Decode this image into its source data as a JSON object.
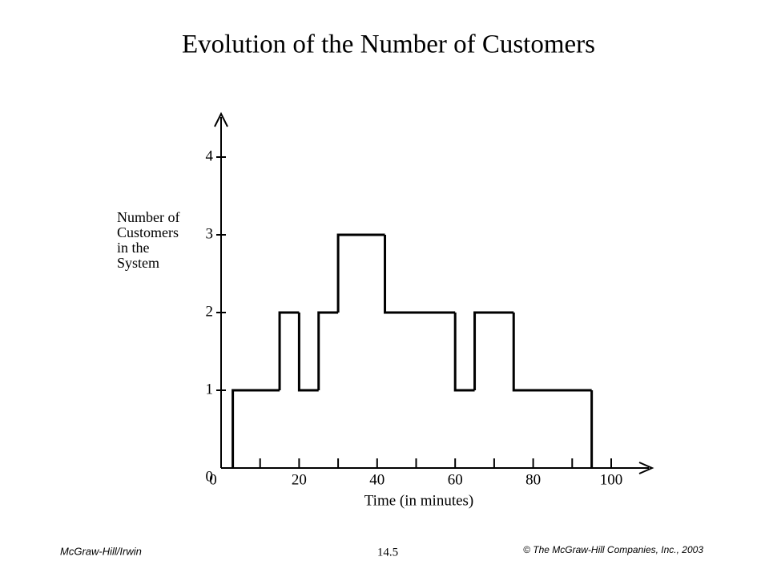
{
  "chart_data": {
    "type": "step",
    "title": "Evolution of the Number of Customers",
    "xlabel": "Time (in minutes)",
    "ylabel": [
      "Number of",
      "Customers",
      "in the",
      "System"
    ],
    "x": [
      3,
      15,
      20,
      25,
      30,
      42,
      60,
      65,
      75,
      95
    ],
    "values": [
      1,
      2,
      1,
      2,
      3,
      2,
      1,
      2,
      1,
      0
    ],
    "color": "#000000",
    "xlim": [
      0,
      110
    ],
    "ylim": [
      0,
      4.6
    ],
    "xticks": [
      0,
      20,
      40,
      60,
      80,
      100
    ],
    "xminorticks": [
      10,
      30,
      50,
      70,
      90
    ],
    "yticks": [
      0,
      1,
      2,
      3,
      4
    ]
  },
  "footer": {
    "left": "McGraw-Hill/Irwin",
    "center": "14.5",
    "right": "© The McGraw-Hill Companies, Inc., 2003"
  }
}
